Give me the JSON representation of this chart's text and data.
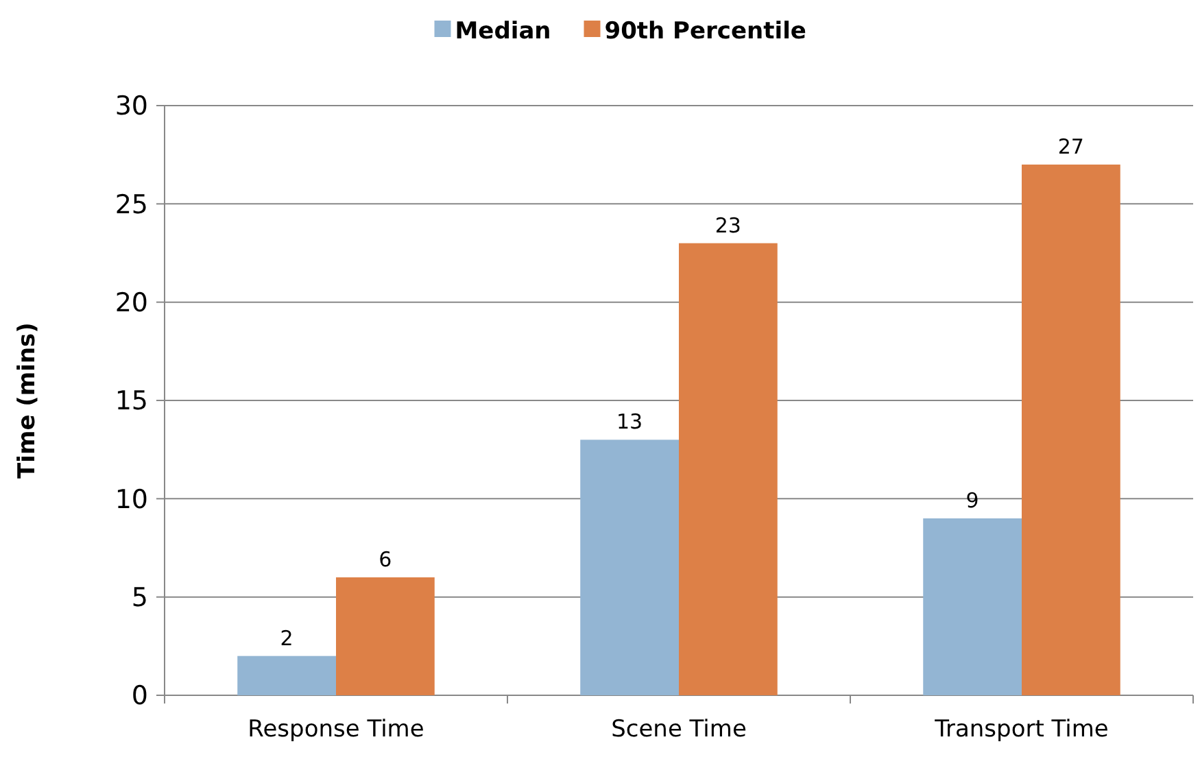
{
  "chart_data": {
    "type": "bar",
    "ylabel": "Time (mins)",
    "categories": [
      "Response Time",
      "Scene Time",
      "Transport Time"
    ],
    "series": [
      {
        "name": "Median",
        "color": "#93b5d3",
        "values": [
          2,
          13,
          9
        ]
      },
      {
        "name": "90th Percentile",
        "color": "#dd8047",
        "values": [
          6,
          23,
          27
        ]
      }
    ],
    "ylim": [
      0,
      30
    ],
    "yticks": [
      0,
      5,
      10,
      15,
      20,
      25,
      30
    ],
    "grid": "y",
    "legend": "top",
    "data_labels": true
  }
}
